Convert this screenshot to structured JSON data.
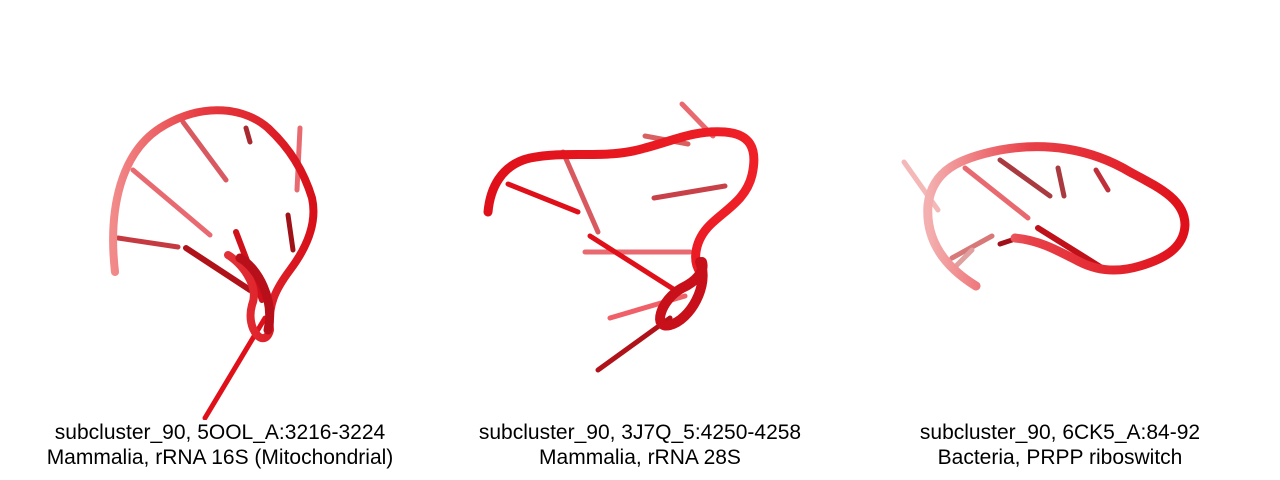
{
  "panels": [
    {
      "subcluster": "subcluster_90, 5OOL_A:3216-3224",
      "description": "Mammalia, rRNA 16S (Mitochondrial)"
    },
    {
      "subcluster": "subcluster_90, 3J7Q_5:4250-4258",
      "description": "Mammalia, rRNA 28S"
    },
    {
      "subcluster": "subcluster_90, 6CK5_A:84-92",
      "description": "Bacteria, PRPP riboswitch"
    }
  ],
  "colors": {
    "backbone": "#e0101a",
    "backbone_light": "#f28a8a",
    "base_dark": "#9e1218",
    "base_mid": "#d8303a",
    "base_light": "#f0a0a0",
    "caption_text": "#000000"
  }
}
